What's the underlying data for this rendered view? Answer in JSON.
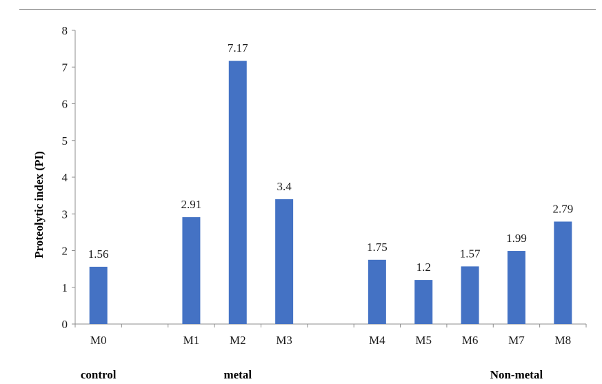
{
  "chart_data": {
    "type": "bar",
    "title": "",
    "ylabel": "Proteolytic index (PI)",
    "xlabel": "",
    "ylim": [
      0,
      8
    ],
    "yticks": [
      0,
      1,
      2,
      3,
      4,
      5,
      6,
      7,
      8
    ],
    "slots": [
      "M0",
      "",
      "M1",
      "M2",
      "M3",
      "",
      "M4",
      "M5",
      "M6",
      "M7",
      "M8"
    ],
    "categories": [
      "M0",
      "M1",
      "M2",
      "M3",
      "M4",
      "M5",
      "M6",
      "M7",
      "M8"
    ],
    "values": [
      1.56,
      2.91,
      7.17,
      3.4,
      1.75,
      1.2,
      1.57,
      1.99,
      2.79
    ],
    "data_labels": [
      "1.56",
      "2.91",
      "7.17",
      "3.4",
      "1.75",
      "1.2",
      "1.57",
      "1.99",
      "2.79"
    ],
    "groups": [
      {
        "label": "control",
        "slot": 0
      },
      {
        "label": "metal",
        "slot": 3
      },
      {
        "label": "Non-metal",
        "slot": 9
      }
    ],
    "bar_color": "#4472c4",
    "grid": false,
    "legend": "none"
  }
}
